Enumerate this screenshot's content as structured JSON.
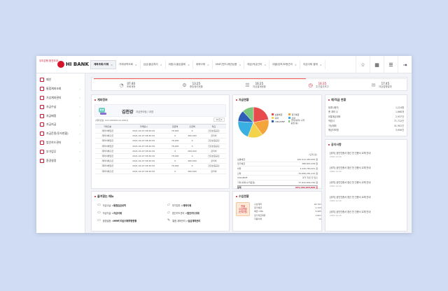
{
  "logo": {
    "small": "우리은행 환전우대",
    "brand": "HI BANK"
  },
  "tabs": [
    {
      "label": "계좌조회/이체",
      "active": true
    },
    {
      "label": "거래내역조회"
    },
    {
      "label": "입금/출금처리"
    },
    {
      "label": "외환/수출입결제"
    },
    {
      "label": "계좌이체"
    },
    {
      "label": "MMF/펀드/채권상품"
    },
    {
      "label": "예금/적금관리"
    },
    {
      "label": "대출/담보/보증관리"
    },
    {
      "label": "자금이체 결재"
    }
  ],
  "toolbar_icons": [
    "star-icon",
    "calendar-icon",
    "menu-icon",
    "logout-icon"
  ],
  "sidebar": [
    {
      "label": "메인"
    },
    {
      "label": "통합계좌조회"
    },
    {
      "label": "가상계좌관리"
    },
    {
      "label": "자금수납"
    },
    {
      "label": "자금배정"
    },
    {
      "label": "자금지급"
    },
    {
      "label": "자금운용(투자현황)"
    },
    {
      "label": "법인카드관리"
    },
    {
      "label": "부가업무"
    },
    {
      "label": "환경설정"
    }
  ],
  "steps": [
    {
      "time": "07:40",
      "label": "조회계좌"
    },
    {
      "time": "13:25",
      "label": "증빙정리현황"
    },
    {
      "time": "16:25",
      "label": "자금결재현황"
    },
    {
      "time": "16:35",
      "label": "주간업무보고",
      "active": true
    },
    {
      "time": "17:45",
      "label": "자금집행결과"
    }
  ],
  "progress_fraction": 0.68,
  "account_card": {
    "title": "계좌정보",
    "name": "김천강",
    "role": "자금관리팀 / 과장",
    "account_line": "(계좌번호: 023-000010-01-0001)",
    "select_label": "10건 ▾",
    "columns": [
      "거래구분",
      "거래일시",
      "입금액",
      "출금액",
      "적요"
    ],
    "rows": [
      [
        "계좌이체입금",
        "2021-04-07 08:40:09",
        "78,000",
        "0",
        "건강보험공단"
      ],
      [
        "계좌이체출금",
        "2021-04-07 08:40:09",
        "0",
        "260,000",
        "관리비"
      ],
      [
        "계좌이체입금",
        "2021-04-07 08:40:09",
        "78,000",
        "0",
        "건강보험공단"
      ],
      [
        "계좌이체입금",
        "2021-04-07 08:40:09",
        "78,000",
        "0",
        "건강보험공단"
      ],
      [
        "계좌이체출금",
        "2021-04-07 08:40:09",
        "0",
        "260,000",
        "관리비"
      ],
      [
        "계좌이체입금",
        "2021-04-07 08:40:09",
        "78,000",
        "0",
        "건강보험공단"
      ],
      [
        "계좌이체출금",
        "2021-04-07 08:40:09",
        "0",
        "260,000",
        "관리비"
      ],
      [
        "계좌이체입금",
        "2021-04-07 08:40:09",
        "78,000",
        "0",
        "건강보험공단"
      ],
      [
        "계좌이체출금",
        "2021-04-07 08:40:09",
        "0",
        "260,000",
        "관리비"
      ]
    ]
  },
  "balance_card": {
    "title": "자금현황",
    "unit": "(단위:원)",
    "chart_data": {
      "type": "pie",
      "labels": [
        "보통예금",
        "정기예금",
        "외화",
        "신탁",
        "기타",
        "CMA/MMF"
      ],
      "values": [
        22,
        18,
        16,
        20,
        12,
        12
      ],
      "colors": [
        "#e84b4b",
        "#f3a43b",
        "#f2d34a",
        "#3ab0e2",
        "#2d5fb8",
        "#7bc67e"
      ]
    },
    "legend": [
      "보통예금",
      "정기예금",
      "외화",
      "신탁",
      "CMA/MMF",
      "기타(외화/ 수익증권 등)"
    ],
    "rows": [
      {
        "label": "보통예금",
        "value": "165,912,484,955 원"
      },
      {
        "label": "정기예금",
        "value": "388,803,258 원"
      },
      {
        "label": "외화",
        "value": "3,426,784,901 원"
      },
      {
        "label": "신탁",
        "value": "34,689,281,033 원"
      },
      {
        "label": "CMA/MMF",
        "value": "과거 지금 전 입출"
      },
      {
        "label": "기타(외화/수익증권)",
        "value": "37,820,846,756 원"
      }
    ],
    "total_label": "합계",
    "total_value": "423,136,965,660 원"
  },
  "stats_card": {
    "title": "예/적금 현황",
    "rows": [
      {
        "label": "등록사용자",
        "value": "1,224명"
      },
      {
        "label": "총 계좌 수",
        "value": "1,668개"
      },
      {
        "label": "보통예금계좌",
        "value": "2,937건"
      },
      {
        "label": "적립식",
        "value": "71,712건"
      },
      {
        "label": "가상계좌",
        "value": "41,901건"
      },
      {
        "label": "예금자보험",
        "value": "3,906건"
      }
    ]
  },
  "notice_card": {
    "title": "공지사항",
    "items": [
      {
        "text": "[공지] 공인인증서 갱신 전 인증서 교체 안내",
        "date": "2020.12.16"
      },
      {
        "text": "[공지] 공인인증서 갱신 전 인증서 교체 안내",
        "date": "2020.12.16"
      },
      {
        "text": "[공지] 공인인증서 갱신 전 인증서 교체 안내",
        "date": "2020.12.16"
      },
      {
        "text": "[공지] 공인인증서 갱신 전 인증서 교체 안내",
        "date": "2020.12.16"
      },
      {
        "text": "[공지] 공인인증서 갱신 전 인증서 교체 안내",
        "date": "2020.12.16"
      }
    ]
  },
  "favorites_card": {
    "title": "즐겨찾는 메뉴",
    "items": [
      {
        "pre": "자금수납 > ",
        "hl": "통합입금내역",
        "icon": "card-icon"
      },
      {
        "pre": "부가업무 > ",
        "hl": "계좌이체",
        "icon": "folder-icon"
      },
      {
        "pre": "자금지급 > ",
        "hl": "자금이체",
        "icon": "card-icon"
      },
      {
        "pre": "법인카드관리 > ",
        "hl": "법인카드조회",
        "icon": "folder-icon"
      },
      {
        "pre": "환경설정 > ",
        "hl": "MMF/자금이체약정현황",
        "icon": "card-icon"
      },
      {
        "pre": "통합 계좌관리 > ",
        "hl": "입금계좌관리",
        "icon": "edit-icon"
      }
    ]
  },
  "flow_card": {
    "title": "수입현황",
    "badge": [
      "월별",
      "수입현황",
      "(단위:원)"
    ],
    "rows": [
      {
        "label": "수납계좌",
        "value": "18,797"
      },
      {
        "label": "정기예금",
        "value": "1,723"
      },
      {
        "label": "예금 CMS",
        "value": "3,965"
      },
      {
        "label": "정기적금계좌",
        "value": "1,821"
      },
      {
        "label": "자동이체",
        "value": "14"
      }
    ]
  }
}
